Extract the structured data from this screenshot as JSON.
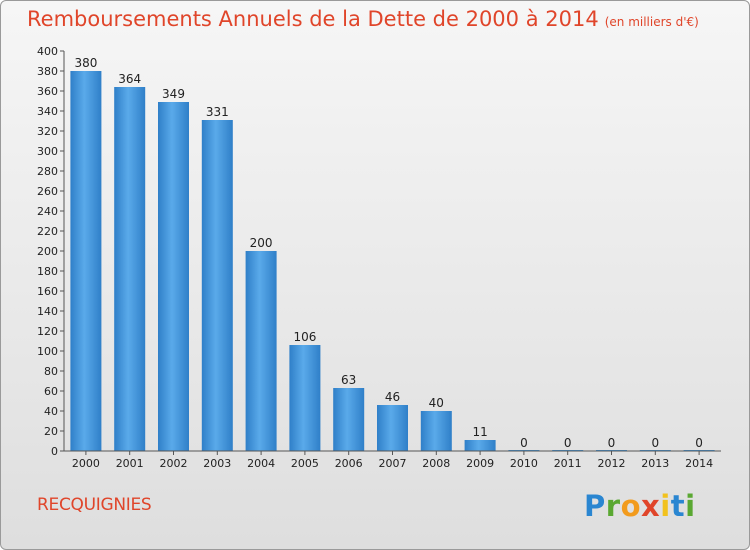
{
  "chart_data": {
    "type": "bar",
    "title": "Remboursements Annuels de la Dette de 2000 à 2014",
    "unit": "(en milliers d'€)",
    "categories": [
      "2000",
      "2001",
      "2002",
      "2003",
      "2004",
      "2005",
      "2006",
      "2007",
      "2008",
      "2009",
      "2010",
      "2011",
      "2012",
      "2013",
      "2014"
    ],
    "values": [
      380,
      364,
      349,
      331,
      200,
      106,
      63,
      46,
      40,
      11,
      0,
      0,
      0,
      0,
      0
    ],
    "ylim": [
      0,
      400
    ],
    "ystep": 20,
    "grid": false,
    "bar_color": "#3f95dc"
  },
  "location": "RECQUIGNIES",
  "logo": {
    "letters": [
      "P",
      "r",
      "o",
      "x",
      "i",
      "t",
      "i"
    ],
    "colors": [
      "#2a86d1",
      "#5aa832",
      "#f29b1d",
      "#e0452a",
      "#f2c21d",
      "#2a86d1",
      "#5aa832"
    ]
  }
}
